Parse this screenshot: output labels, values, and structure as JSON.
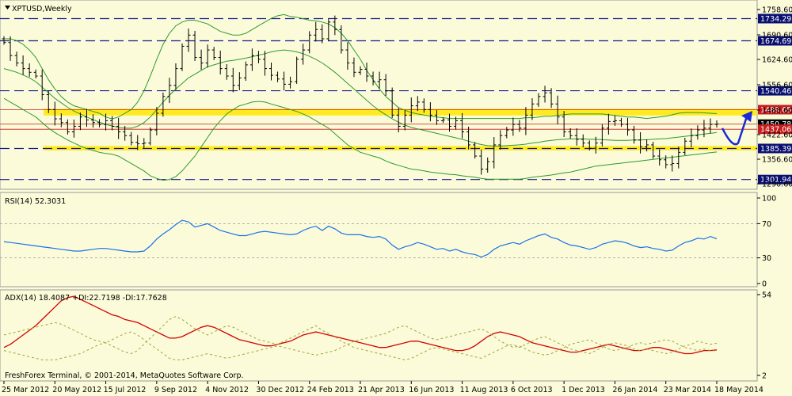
{
  "window": {
    "title": "XPTUSD,Weekly",
    "copyright": "FreshForex Terminal, © 2001-2014, MetaQuotes Software Corp."
  },
  "colors": {
    "background": "#fbfbd9",
    "candle": "#000000",
    "band": "#2e9a2e",
    "rsi": "#1a73e8",
    "adx": "#d40000",
    "di": "#9aa83a",
    "level": "#1a1a8a",
    "tag_blue": "#0b1170",
    "tag_red": "#c81e1e",
    "zone": "#ffe600",
    "arrow": "#1a2bd6"
  },
  "chart_data": [
    {
      "type": "candlestick",
      "title": "XPTUSD,Weekly",
      "symbol": "XPTUSD",
      "timeframe": "Weekly",
      "ylim": [
        1280,
        1780
      ],
      "y_ticks": [
        1758.6,
        1690.6,
        1624.6,
        1556.6,
        1488.6,
        1422.6,
        1356.6,
        1290.6
      ],
      "y_tick_labels": [
        "1758.60",
        "1690.60",
        "1624.60",
        "1556.60",
        "1488.60",
        "1422.60",
        "1356.60",
        "1290.60"
      ],
      "x_tick_labels": [
        "25 Mar 2012",
        "20 May 2012",
        "15 Jul 2012",
        "9 Sep 2012",
        "4 Nov 2012",
        "30 Dec 2012",
        "24 Feb 2013",
        "21 Apr 2013",
        "16 Jun 2013",
        "11 Aug 2013",
        "6 Oct 2013",
        "1 Dec 2013",
        "26 Jan 2014",
        "23 Mar 2014",
        "18 May 2014"
      ],
      "weeks": 113,
      "close": [
        1670,
        1635,
        1615,
        1600,
        1590,
        1580,
        1530,
        1490,
        1465,
        1455,
        1430,
        1445,
        1470,
        1462,
        1455,
        1450,
        1460,
        1445,
        1430,
        1420,
        1402,
        1398,
        1400,
        1435,
        1480,
        1525,
        1555,
        1600,
        1660,
        1690,
        1630,
        1615,
        1650,
        1630,
        1600,
        1580,
        1555,
        1575,
        1610,
        1635,
        1625,
        1600,
        1582,
        1572,
        1558,
        1565,
        1625,
        1650,
        1690,
        1705,
        1680,
        1725,
        1705,
        1650,
        1615,
        1590,
        1598,
        1580,
        1565,
        1570,
        1540,
        1475,
        1445,
        1475,
        1500,
        1510,
        1490,
        1475,
        1460,
        1462,
        1445,
        1460,
        1430,
        1395,
        1365,
        1330,
        1350,
        1395,
        1420,
        1435,
        1450,
        1440,
        1475,
        1505,
        1525,
        1535,
        1505,
        1470,
        1430,
        1420,
        1410,
        1400,
        1386,
        1400,
        1440,
        1458,
        1460,
        1450,
        1435,
        1408,
        1390,
        1395,
        1365,
        1355,
        1342,
        1345,
        1375,
        1405,
        1420,
        1435,
        1440,
        1450,
        1451
      ],
      "bollinger_upper": [
        1680,
        1680,
        1675,
        1665,
        1650,
        1630,
        1600,
        1570,
        1545,
        1525,
        1510,
        1500,
        1495,
        1490,
        1485,
        1480,
        1470,
        1465,
        1470,
        1480,
        1490,
        1510,
        1540,
        1580,
        1625,
        1665,
        1695,
        1715,
        1725,
        1730,
        1730,
        1725,
        1720,
        1710,
        1700,
        1695,
        1690,
        1690,
        1695,
        1705,
        1715,
        1725,
        1735,
        1742,
        1745,
        1740,
        1738,
        1734,
        1730,
        1728,
        1725,
        1720,
        1710,
        1695,
        1675,
        1650,
        1625,
        1595,
        1570,
        1545,
        1525,
        1510,
        1495,
        1488,
        1482,
        1478,
        1475,
        1472,
        1470,
        1468,
        1466,
        1466,
        1466,
        1466,
        1466,
        1466,
        1466,
        1466,
        1466,
        1466,
        1466,
        1466,
        1468,
        1468,
        1470,
        1472,
        1472,
        1474,
        1476,
        1478,
        1478,
        1478,
        1478,
        1478,
        1478,
        1476,
        1474,
        1472,
        1470,
        1470,
        1468,
        1466,
        1468,
        1470,
        1472,
        1476,
        1480,
        1482,
        1482,
        1482,
        1481,
        1480,
        1479
      ],
      "bollinger_middle": [
        1600,
        1595,
        1590,
        1583,
        1575,
        1565,
        1550,
        1535,
        1520,
        1508,
        1496,
        1486,
        1478,
        1470,
        1463,
        1456,
        1450,
        1446,
        1442,
        1440,
        1440,
        1445,
        1455,
        1470,
        1490,
        1510,
        1528,
        1545,
        1560,
        1575,
        1585,
        1595,
        1605,
        1610,
        1615,
        1620,
        1622,
        1625,
        1628,
        1632,
        1636,
        1640,
        1645,
        1648,
        1650,
        1648,
        1645,
        1640,
        1633,
        1625,
        1615,
        1603,
        1590,
        1575,
        1560,
        1545,
        1530,
        1515,
        1500,
        1487,
        1476,
        1465,
        1456,
        1448,
        1442,
        1438,
        1434,
        1430,
        1426,
        1422,
        1418,
        1414,
        1410,
        1405,
        1400,
        1396,
        1393,
        1392,
        1392,
        1393,
        1394,
        1395,
        1397,
        1400,
        1402,
        1405,
        1407,
        1409,
        1410,
        1411,
        1411,
        1411,
        1410,
        1410,
        1409,
        1408,
        1407,
        1407,
        1407,
        1408,
        1408,
        1409,
        1410,
        1411,
        1412,
        1414,
        1416,
        1418,
        1420,
        1422,
        1424,
        1426,
        1428
      ],
      "bollinger_lower": [
        1520,
        1510,
        1500,
        1490,
        1480,
        1470,
        1455,
        1440,
        1428,
        1418,
        1408,
        1400,
        1392,
        1385,
        1380,
        1375,
        1372,
        1370,
        1365,
        1355,
        1345,
        1335,
        1325,
        1312,
        1305,
        1300,
        1302,
        1310,
        1325,
        1345,
        1365,
        1390,
        1415,
        1440,
        1460,
        1478,
        1490,
        1500,
        1505,
        1510,
        1512,
        1510,
        1505,
        1500,
        1495,
        1490,
        1485,
        1478,
        1470,
        1460,
        1450,
        1440,
        1425,
        1410,
        1395,
        1385,
        1375,
        1370,
        1365,
        1360,
        1352,
        1345,
        1340,
        1335,
        1330,
        1328,
        1325,
        1322,
        1320,
        1318,
        1316,
        1315,
        1312,
        1310,
        1308,
        1305,
        1303,
        1303,
        1303,
        1303,
        1303,
        1303,
        1305,
        1308,
        1310,
        1312,
        1314,
        1317,
        1320,
        1322,
        1326,
        1330,
        1334,
        1338,
        1340,
        1342,
        1344,
        1346,
        1348,
        1350,
        1352,
        1354,
        1356,
        1358,
        1360,
        1362,
        1364,
        1366,
        1368,
        1370,
        1372,
        1374,
        1376
      ],
      "levels": [
        {
          "value": 1734.29,
          "label": "1734.29"
        },
        {
          "value": 1674.69,
          "label": "1674.69"
        },
        {
          "value": 1540.46,
          "label": "1540.46"
        },
        {
          "value": 1385.39,
          "label": "1385.39"
        },
        {
          "value": 1301.94,
          "label": "1301.94"
        }
      ],
      "zones": [
        {
          "from": 1474,
          "to": 1492
        },
        {
          "from": 1380,
          "to": 1392
        }
      ],
      "price_tags": [
        {
          "value": 1489.65,
          "label": "1489.65",
          "color": "red"
        },
        {
          "value": 1450.78,
          "label": "1450.78",
          "color": "black"
        },
        {
          "value": 1437.06,
          "label": "1437.06",
          "color": "red"
        }
      ]
    },
    {
      "type": "line",
      "title": "RSI(14) 52.3031",
      "label": "RSI(14)",
      "value": "52.3031",
      "ylim": [
        0,
        100
      ],
      "y_tick_labels": [
        "100",
        "70",
        "30",
        "0"
      ],
      "levels": [
        70,
        30
      ],
      "series": [
        {
          "name": "RSI(14)",
          "values": [
            49,
            48,
            47,
            46,
            45,
            44,
            43,
            42,
            41,
            40,
            39,
            38,
            38,
            39,
            40,
            41,
            41,
            40,
            39,
            38,
            37,
            37,
            38,
            44,
            52,
            58,
            63,
            69,
            74,
            72,
            66,
            68,
            70,
            66,
            62,
            60,
            58,
            56,
            56,
            58,
            60,
            61,
            60,
            59,
            58,
            57,
            58,
            62,
            65,
            67,
            62,
            67,
            64,
            59,
            57,
            57,
            57,
            55,
            54,
            55,
            52,
            45,
            40,
            43,
            45,
            48,
            46,
            43,
            40,
            41,
            38,
            40,
            37,
            35,
            34,
            31,
            34,
            40,
            44,
            46,
            48,
            46,
            50,
            53,
            56,
            58,
            54,
            52,
            48,
            45,
            44,
            42,
            40,
            42,
            46,
            48,
            50,
            49,
            47,
            44,
            42,
            43,
            41,
            40,
            38,
            39,
            44,
            48,
            50,
            53,
            52,
            55,
            52.3
          ]
        }
      ]
    },
    {
      "type": "line",
      "title": "ADX(14) 18.4087 +DI:22.7198 -DI:17.7628",
      "label": "ADX(14) 18.4087 +DI:22.7198 -DI:17.7628",
      "y_tick_labels": [
        "54",
        "2"
      ],
      "ylim": [
        2,
        54
      ],
      "series": [
        {
          "name": "ADX(14)",
          "values": [
            20,
            22,
            25,
            28,
            31,
            34,
            38,
            42,
            46,
            50,
            52,
            53,
            51,
            49,
            47,
            45,
            43,
            41,
            40,
            38,
            37,
            36,
            34,
            32,
            30,
            28,
            26,
            26,
            27,
            29,
            31,
            33,
            34,
            33,
            31,
            29,
            27,
            25,
            24,
            23,
            22,
            21,
            21,
            22,
            23,
            24,
            26,
            28,
            29,
            30,
            29,
            28,
            27,
            26,
            25,
            24,
            23,
            22,
            21,
            20,
            20,
            21,
            22,
            23,
            24,
            24,
            23,
            22,
            21,
            20,
            19,
            18,
            18,
            19,
            21,
            24,
            27,
            29,
            30,
            29,
            28,
            27,
            25,
            23,
            22,
            21,
            20,
            19,
            18,
            17,
            17,
            18,
            19,
            20,
            21,
            22,
            21,
            20,
            19,
            18,
            18,
            19,
            20,
            20,
            19,
            18,
            17,
            16,
            16,
            17,
            18,
            18,
            18.4
          ]
        },
        {
          "name": "+DI",
          "values": [
            18,
            17,
            16,
            15,
            14,
            13,
            12,
            12,
            12,
            13,
            14,
            15,
            16,
            18,
            20,
            22,
            23,
            21,
            19,
            17,
            16,
            18,
            22,
            26,
            30,
            34,
            38,
            40,
            38,
            35,
            32,
            30,
            28,
            30,
            32,
            34,
            33,
            31,
            29,
            27,
            25,
            24,
            23,
            22,
            24,
            26,
            28,
            30,
            32,
            34,
            31,
            29,
            27,
            24,
            22,
            20,
            19,
            18,
            17,
            16,
            15,
            14,
            13,
            12,
            13,
            15,
            17,
            19,
            20,
            19,
            18,
            17,
            16,
            15,
            14,
            13,
            15,
            17,
            19,
            21,
            22,
            20,
            22,
            24,
            26,
            27,
            25,
            23,
            21,
            19,
            18,
            17,
            16,
            18,
            20,
            22,
            23,
            22,
            21,
            19,
            18,
            19,
            18,
            17,
            16,
            17,
            19,
            21,
            22,
            24,
            23,
            22,
            22.7
          ]
        },
        {
          "name": "-DI",
          "values": [
            28,
            29,
            30,
            31,
            32,
            33,
            34,
            35,
            36,
            35,
            33,
            31,
            29,
            27,
            25,
            24,
            23,
            25,
            27,
            29,
            30,
            28,
            25,
            22,
            19,
            16,
            13,
            12,
            12,
            13,
            14,
            15,
            16,
            15,
            14,
            13,
            14,
            15,
            16,
            17,
            18,
            19,
            20,
            21,
            20,
            19,
            18,
            17,
            16,
            15,
            16,
            17,
            18,
            20,
            22,
            24,
            25,
            26,
            27,
            28,
            29,
            31,
            33,
            34,
            32,
            30,
            28,
            26,
            25,
            26,
            27,
            28,
            29,
            30,
            31,
            32,
            30,
            27,
            24,
            22,
            20,
            21,
            19,
            17,
            16,
            15,
            16,
            18,
            20,
            22,
            23,
            24,
            25,
            23,
            21,
            19,
            18,
            19,
            20,
            22,
            23,
            22,
            23,
            24,
            25,
            24,
            22,
            20,
            19,
            18,
            19,
            18,
            17.8
          ]
        }
      ]
    }
  ]
}
